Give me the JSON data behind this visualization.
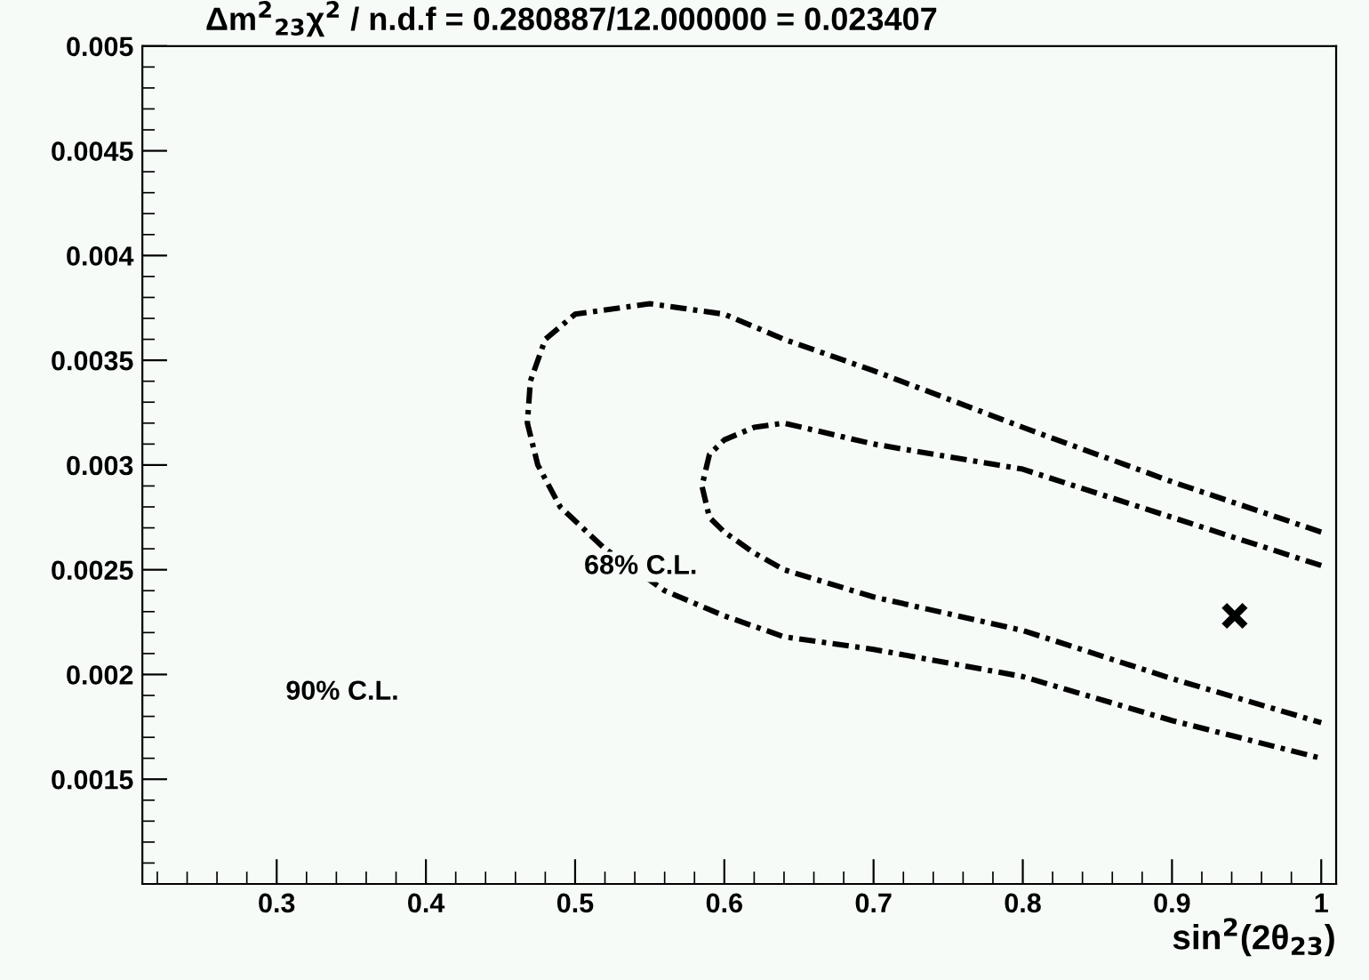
{
  "chart_data": {
    "type": "line",
    "title": "Δm$^{2}$$_{23}$χ$^{2}$ / n.d.f = 0.280887/12.000000 = 0.023407",
    "xlabel": "sin$^{2}$(2θ$_{23}$)",
    "xlim": [
      0.21,
      1.01
    ],
    "ylim": [
      0.001,
      0.005
    ],
    "xticks": [
      0.3,
      0.4,
      0.5,
      0.6,
      0.7,
      0.8,
      0.9,
      1
    ],
    "yticks": [
      0.0015,
      0.002,
      0.0025,
      0.003,
      0.0035,
      0.004,
      0.0045,
      0.005
    ],
    "grid": false,
    "legend": false,
    "series": [
      {
        "color": "#000000",
        "line_style": "dashed",
        "marker": "none",
        "x": [
          1.0,
          0.9,
          0.8,
          0.7,
          0.64,
          0.6,
          0.55,
          0.5,
          0.48,
          0.47,
          0.468,
          0.475,
          0.49,
          0.52,
          0.56,
          0.6,
          0.64,
          0.7,
          0.8,
          0.9,
          1.0
        ],
        "values": [
          0.00268,
          0.00292,
          0.00318,
          0.00345,
          0.0036,
          0.00372,
          0.00377,
          0.00372,
          0.0036,
          0.0034,
          0.0032,
          0.003,
          0.0028,
          0.0026,
          0.0024,
          0.00228,
          0.00218,
          0.00212,
          0.00199,
          0.00178,
          0.0016
        ]
      },
      {
        "color": "#000000",
        "line_style": "dashed",
        "marker": "none",
        "x": [
          1.0,
          0.9,
          0.8,
          0.7,
          0.64,
          0.62,
          0.6,
          0.59,
          0.585,
          0.59,
          0.6,
          0.62,
          0.64,
          0.7,
          0.8,
          0.9,
          1.0
        ],
        "values": [
          0.00252,
          0.00275,
          0.00298,
          0.0031,
          0.0032,
          0.00318,
          0.00312,
          0.00305,
          0.0029,
          0.00275,
          0.00268,
          0.00258,
          0.0025,
          0.00237,
          0.00221,
          0.00198,
          0.00177
        ]
      },
      {
        "type": "scatter",
        "color": "#000000",
        "marker": "cross",
        "x": [
          0.942
        ],
        "values": [
          0.00228
        ]
      }
    ],
    "annotations": [
      "68% C.L.",
      "90% C.L."
    ]
  }
}
